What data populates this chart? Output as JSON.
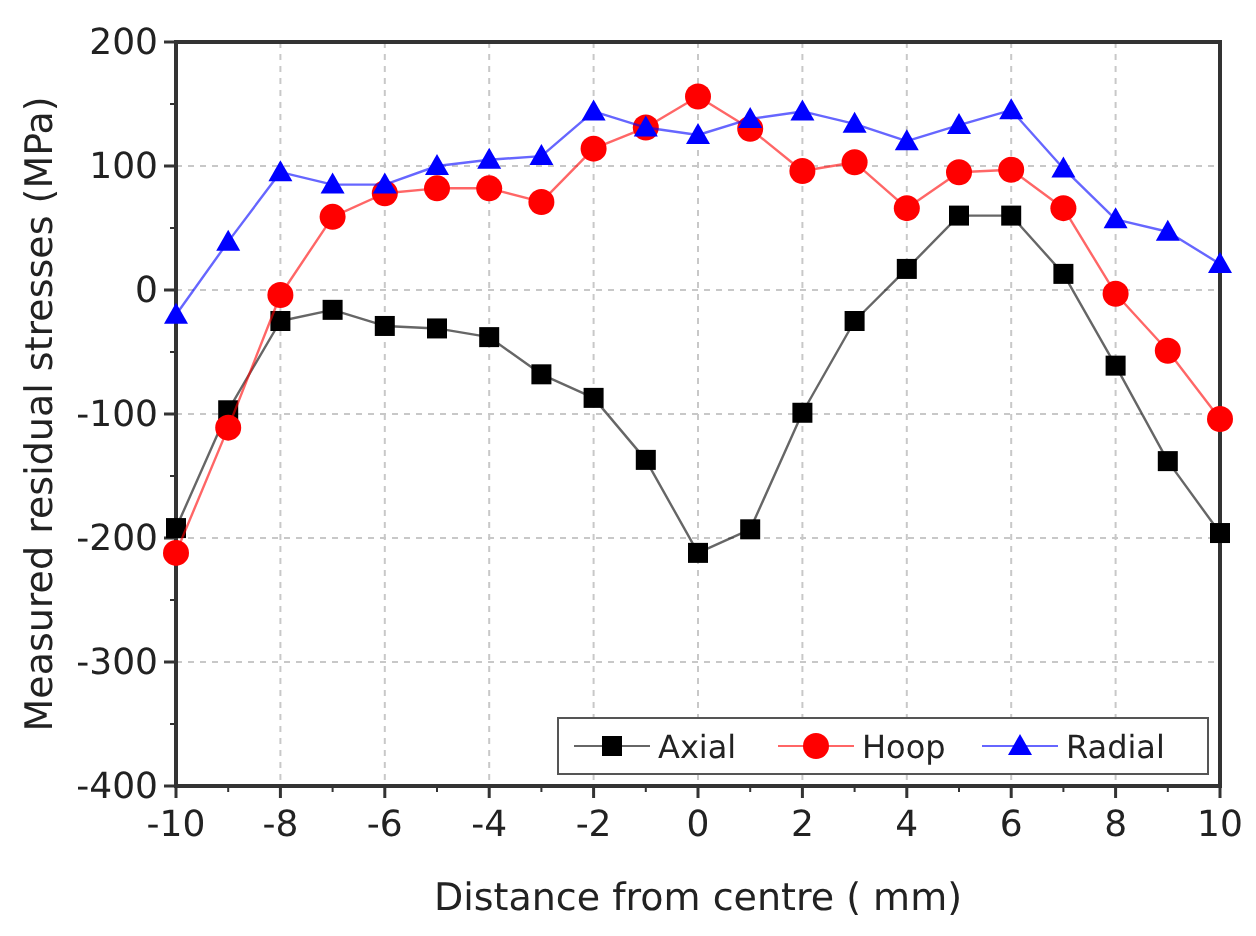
{
  "chart_data": {
    "type": "line",
    "xlabel": "Distance from centre (   mm)",
    "ylabel": "Measured residual stresses (MPa)",
    "x": [
      -10,
      -9,
      -8,
      -7,
      -6,
      -5,
      -4,
      -3,
      -2,
      -1,
      0,
      1,
      2,
      3,
      4,
      5,
      6,
      7,
      8,
      9,
      10
    ],
    "series": [
      {
        "name": "Axial",
        "color": "#000000",
        "marker": "square",
        "values": [
          -192,
          -97,
          -25,
          -16,
          -29,
          -31,
          -38,
          -68,
          -87,
          -137,
          -212,
          -193,
          -99,
          -25,
          17,
          60,
          60,
          13,
          -61,
          -138,
          -196
        ]
      },
      {
        "name": "Hoop",
        "color": "#ff0000",
        "marker": "circle",
        "values": [
          -212,
          -111,
          -4,
          59,
          78,
          82,
          82,
          71,
          114,
          131,
          156,
          130,
          96,
          103,
          66,
          95,
          97,
          66,
          -3,
          -49,
          -104
        ]
      },
      {
        "name": "Radial",
        "color": "#0000ff",
        "marker": "triangle",
        "values": [
          -20,
          39,
          95,
          85,
          85,
          100,
          105,
          108,
          144,
          131,
          125,
          138,
          144,
          134,
          120,
          133,
          145,
          98,
          57,
          47,
          21
        ]
      }
    ],
    "xlim": [
      -10,
      10
    ],
    "xticks": [
      -10,
      -8,
      -6,
      -4,
      -2,
      0,
      2,
      4,
      6,
      8,
      10
    ],
    "ylim": [
      -400,
      200
    ],
    "yticks": [
      -400,
      -300,
      -200,
      -100,
      0,
      100,
      200
    ],
    "grid": true,
    "legend": "bottom right"
  }
}
